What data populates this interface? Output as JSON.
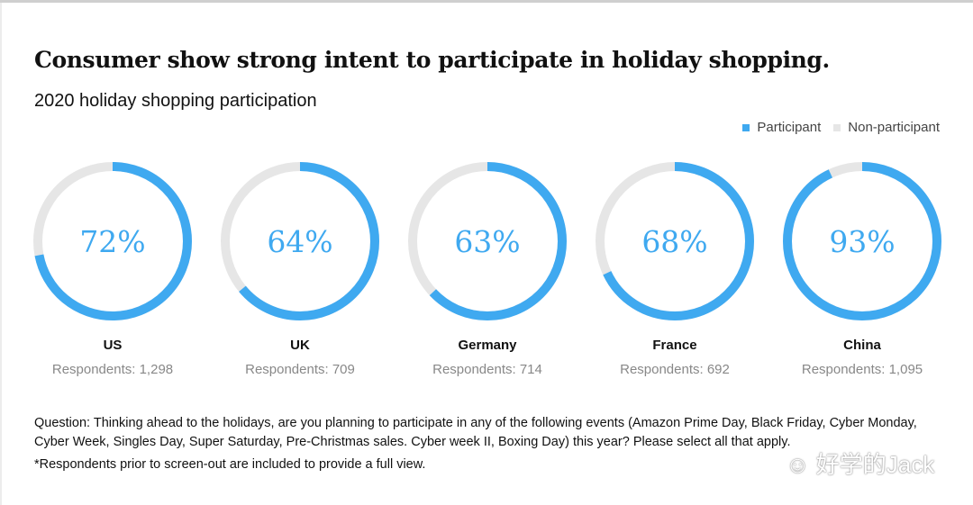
{
  "title": "Consumer show strong intent to participate in holiday shopping.",
  "subtitle": "2020 holiday shopping participation",
  "colors": {
    "participant": "#3fa9f0",
    "non_participant": "#e6e6e6"
  },
  "chart_data": {
    "type": "donut",
    "legend": [
      {
        "label": "Participant",
        "color": "#3fa9f0"
      },
      {
        "label": "Non-participant",
        "color": "#e6e6e6"
      }
    ],
    "legend_placement": "top-right",
    "items": [
      {
        "country": "US",
        "value": 72,
        "label": "72%",
        "respondents": "Respondents: 1,298"
      },
      {
        "country": "UK",
        "value": 64,
        "label": "64%",
        "respondents": "Respondents: 709"
      },
      {
        "country": "Germany",
        "value": 63,
        "label": "63%",
        "respondents": "Respondents: 714"
      },
      {
        "country": "France",
        "value": 68,
        "label": "68%",
        "respondents": "Respondents: 692"
      },
      {
        "country": "China",
        "value": 93,
        "label": "93%",
        "respondents": "Respondents: 1,095"
      }
    ]
  },
  "notes": {
    "question": "Question: Thinking ahead to the holidays, are you planning to participate in any of the following events (Amazon Prime Day, Black Friday, Cyber Monday, Cyber Week, Singles Day, Super Saturday, Pre-Christmas sales. Cyber week II, Boxing Day) this year? Please select all that apply.",
    "footnote": "*Respondents prior to screen-out are included to provide a full view."
  },
  "watermark": "好学的Jack"
}
